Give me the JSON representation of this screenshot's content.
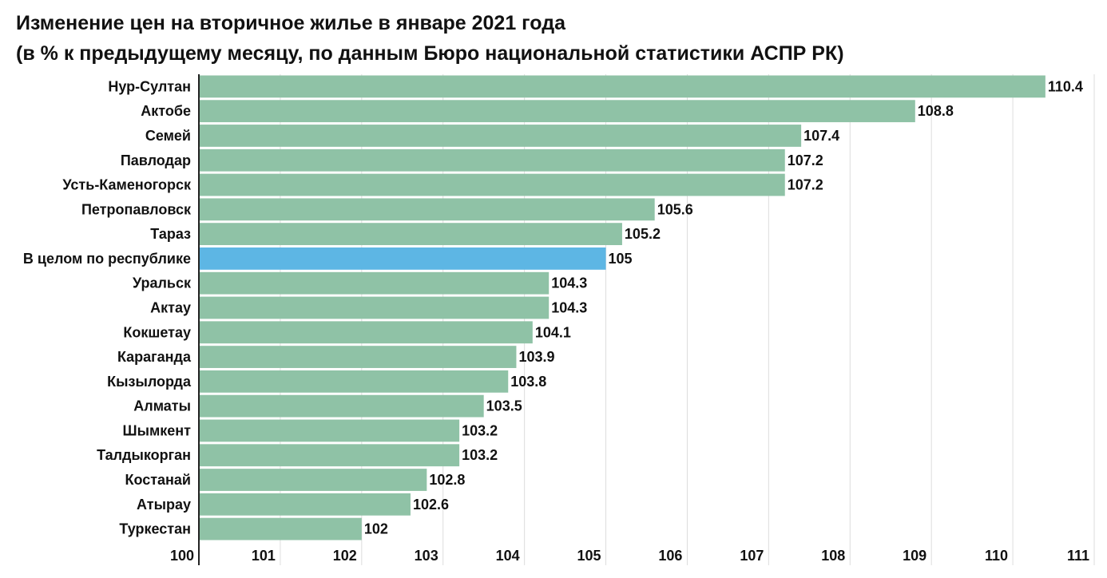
{
  "chart_data": {
    "type": "bar",
    "orientation": "horizontal",
    "title": "Изменение цен на вторичное жилье в январе 2021 года",
    "subtitle": "(в % к предыдущему месяцу, по данным Бюро национальной статистики АСПР РК)",
    "categories": [
      "Нур-Султан",
      "Актобе",
      "Семей",
      "Павлодар",
      "Усть-Каменогорск",
      "Петропавловск",
      "Тараз",
      "В целом по республике",
      "Уральск",
      "Актау",
      "Кокшетау",
      "Караганда",
      "Кызылорда",
      "Алматы",
      "Шымкент",
      "Талдыкорган",
      "Костанай",
      "Атырау",
      "Туркестан"
    ],
    "values": [
      110.4,
      108.8,
      107.4,
      107.2,
      107.2,
      105.6,
      105.2,
      105,
      104.3,
      104.3,
      104.1,
      103.9,
      103.8,
      103.5,
      103.2,
      103.2,
      102.8,
      102.6,
      102
    ],
    "value_labels": [
      "110.4",
      "108.8",
      "107.4",
      "107.2",
      "107.2",
      "105.6",
      "105.2",
      "105",
      "104.3",
      "104.3",
      "104.1",
      "103.9",
      "103.8",
      "103.5",
      "103.2",
      "103.2",
      "102.8",
      "102.6",
      "102"
    ],
    "highlight_category": "В целом по республике",
    "xlim": [
      100,
      111
    ],
    "ticks": [
      "100",
      "101",
      "102",
      "103",
      "104",
      "105",
      "106",
      "107",
      "108",
      "109",
      "110",
      "111"
    ],
    "grid": true,
    "legend": "none",
    "colors": {
      "bar": "#8fc2a6",
      "highlight": "#5db6e4",
      "grid": "#dddddd",
      "axis": "#222222"
    }
  }
}
